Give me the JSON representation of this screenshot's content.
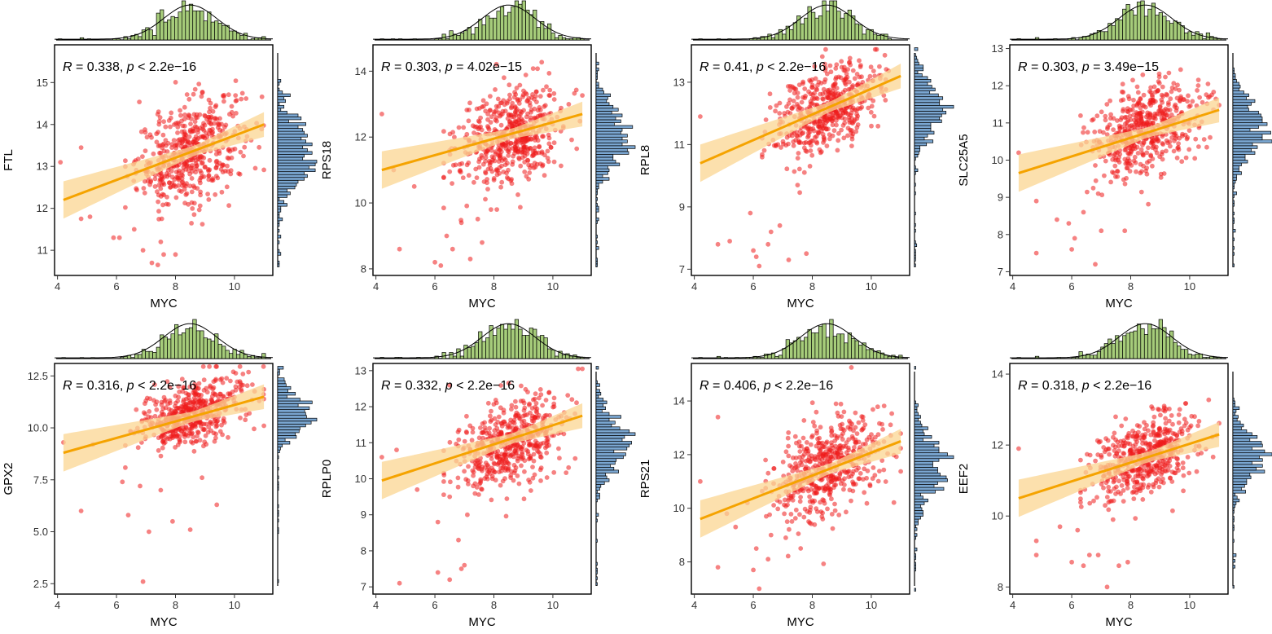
{
  "colors": {
    "points": "#ee1c1c",
    "fit_line": "#f5a300",
    "ci_band": "#fbd592",
    "top_hist": "#a6cc7a",
    "right_hist": "#7aa6d1",
    "frame": "#000000"
  },
  "chart_data": [
    {
      "type": "scatter",
      "title": "",
      "xlabel": "MYC",
      "ylabel": "FTL",
      "xlim": [
        3.9,
        11.3
      ],
      "ylim": [
        10.4,
        15.9
      ],
      "xticks": [
        "4",
        "6",
        "8",
        "10"
      ],
      "yticks": [
        "11",
        "12",
        "13",
        "14",
        "15"
      ],
      "ytick_values": [
        11,
        12,
        13,
        14,
        15
      ],
      "r_label": "R",
      "p_label": "p",
      "stat_text": " = 0.338, ",
      "p_text": " < 2.2e−16",
      "fit": {
        "x0": 4.2,
        "y0": 12.2,
        "x1": 11.0,
        "y1": 14.0
      },
      "cloud": {
        "mean_x": 8.5,
        "sd_x": 0.9,
        "mean_y": 13.35,
        "sd_y": 0.6,
        "slope": 0.26
      },
      "outliers": [
        [
          6.1,
          11.3
        ],
        [
          6.6,
          11.5
        ],
        [
          7.2,
          10.7
        ],
        [
          7.6,
          10.9
        ],
        [
          5.9,
          11.3
        ],
        [
          4.8,
          13.45
        ],
        [
          4.1,
          13.1
        ],
        [
          5.1,
          11.8
        ],
        [
          7.5,
          11.2
        ],
        [
          4.8,
          11.75
        ],
        [
          6.9,
          11.0
        ],
        [
          7.4,
          10.65
        ],
        [
          8.0,
          10.9
        ]
      ]
    },
    {
      "type": "scatter",
      "title": "",
      "xlabel": "MYC",
      "ylabel": "RPS18",
      "xlim": [
        3.9,
        11.3
      ],
      "ylim": [
        7.8,
        14.8
      ],
      "xticks": [
        "4",
        "6",
        "8",
        "10"
      ],
      "yticks": [
        "8",
        "10",
        "12",
        "14"
      ],
      "ytick_values": [
        8,
        10,
        12,
        14
      ],
      "r_label": "R",
      "p_label": "p",
      "stat_text": " = 0.303, ",
      "p_text": " = 4.02e−15",
      "fit": {
        "x0": 4.2,
        "y0": 11.0,
        "x1": 11.0,
        "y1": 12.7
      },
      "cloud": {
        "mean_x": 8.5,
        "sd_x": 0.9,
        "mean_y": 12.05,
        "sd_y": 0.72,
        "slope": 0.25
      },
      "outliers": [
        [
          4.8,
          8.6
        ],
        [
          6.0,
          8.2
        ],
        [
          6.6,
          8.6
        ],
        [
          7.2,
          8.3
        ],
        [
          6.4,
          9.0
        ],
        [
          6.9,
          9.4
        ],
        [
          7.6,
          8.8
        ],
        [
          5.3,
          10.5
        ],
        [
          4.2,
          12.7
        ],
        [
          4.6,
          11.0
        ],
        [
          7.9,
          9.8
        ],
        [
          6.2,
          8.1
        ],
        [
          8.1,
          9.8
        ]
      ]
    },
    {
      "type": "scatter",
      "title": "",
      "xlabel": "MYC",
      "ylabel": "RPL8",
      "xlim": [
        3.9,
        11.3
      ],
      "ylim": [
        6.8,
        14.2
      ],
      "xticks": [
        "4",
        "6",
        "8",
        "10"
      ],
      "yticks": [
        "7",
        "9",
        "11",
        "13"
      ],
      "ytick_values": [
        7,
        9,
        11,
        13
      ],
      "r_label": "R",
      "p_label": "p",
      "stat_text": " = 0.41, ",
      "p_text": " < 2.2e−16",
      "fit": {
        "x0": 4.2,
        "y0": 10.4,
        "x1": 11.0,
        "y1": 13.2
      },
      "cloud": {
        "mean_x": 8.5,
        "sd_x": 0.9,
        "mean_y": 12.1,
        "sd_y": 0.68,
        "slope": 0.42
      },
      "outliers": [
        [
          4.8,
          7.8
        ],
        [
          6.1,
          7.4
        ],
        [
          6.6,
          8.2
        ],
        [
          7.2,
          7.3
        ],
        [
          5.9,
          8.8
        ],
        [
          6.5,
          7.8
        ],
        [
          7.5,
          9.7
        ],
        [
          4.2,
          11.9
        ],
        [
          6.2,
          7.1
        ],
        [
          6.9,
          8.4
        ],
        [
          6.0,
          7.6
        ],
        [
          7.8,
          7.5
        ],
        [
          5.2,
          7.9
        ]
      ]
    },
    {
      "type": "scatter",
      "title": "",
      "xlabel": "MYC",
      "ylabel": "SLC25A5",
      "xlim": [
        3.9,
        11.3
      ],
      "ylim": [
        6.9,
        13.1
      ],
      "xticks": [
        "4",
        "6",
        "8",
        "10"
      ],
      "yticks": [
        "7",
        "8",
        "9",
        "10",
        "11",
        "12",
        "13"
      ],
      "ytick_values": [
        7,
        8,
        9,
        10,
        11,
        12,
        13
      ],
      "r_label": "R",
      "p_label": "p",
      "stat_text": " = 0.303, ",
      "p_text": " = 3.49e−15",
      "fit": {
        "x0": 4.2,
        "y0": 9.65,
        "x1": 11.0,
        "y1": 11.35
      },
      "cloud": {
        "mean_x": 8.5,
        "sd_x": 0.9,
        "mean_y": 10.8,
        "sd_y": 0.6,
        "slope": 0.25
      },
      "outliers": [
        [
          4.8,
          7.5
        ],
        [
          6.0,
          7.6
        ],
        [
          6.8,
          7.2
        ],
        [
          4.2,
          10.2
        ],
        [
          4.8,
          8.9
        ],
        [
          5.9,
          8.3
        ],
        [
          6.4,
          8.6
        ],
        [
          7.0,
          8.1
        ],
        [
          7.8,
          8.1
        ],
        [
          6.9,
          9.1
        ],
        [
          5.5,
          8.4
        ],
        [
          6.1,
          7.9
        ]
      ]
    },
    {
      "type": "scatter",
      "title": "",
      "xlabel": "MYC",
      "ylabel": "GPX2",
      "xlim": [
        3.9,
        11.3
      ],
      "ylim": [
        2.0,
        13.1
      ],
      "xticks": [
        "4",
        "6",
        "8",
        "10"
      ],
      "yticks": [
        "2.5",
        "5.0",
        "7.5",
        "10.0",
        "12.5"
      ],
      "ytick_values": [
        2.5,
        5.0,
        7.5,
        10.0,
        12.5
      ],
      "r_label": "R",
      "p_label": "p",
      "stat_text": " = 0.316, ",
      "p_text": " < 2.2e−16",
      "fit": {
        "x0": 4.2,
        "y0": 8.8,
        "x1": 11.0,
        "y1": 11.5
      },
      "cloud": {
        "mean_x": 8.5,
        "sd_x": 0.9,
        "mean_y": 10.7,
        "sd_y": 0.75,
        "slope": 0.4
      },
      "outliers": [
        [
          4.8,
          6.0
        ],
        [
          6.9,
          2.6
        ],
        [
          7.1,
          5.0
        ],
        [
          8.5,
          5.1
        ],
        [
          6.4,
          5.8
        ],
        [
          7.9,
          5.5
        ],
        [
          5.2,
          9.2
        ],
        [
          4.2,
          9.3
        ],
        [
          6.2,
          7.4
        ],
        [
          6.8,
          7.2
        ],
        [
          9.4,
          6.3
        ],
        [
          7.5,
          7.0
        ],
        [
          8.9,
          7.6
        ]
      ]
    },
    {
      "type": "scatter",
      "title": "",
      "xlabel": "MYC",
      "ylabel": "RPLP0",
      "xlim": [
        3.9,
        11.3
      ],
      "ylim": [
        6.8,
        13.2
      ],
      "xticks": [
        "4",
        "6",
        "8",
        "10"
      ],
      "yticks": [
        "7",
        "8",
        "9",
        "10",
        "11",
        "12",
        "13"
      ],
      "ytick_values": [
        7,
        8,
        9,
        10,
        11,
        12,
        13
      ],
      "r_label": "R",
      "p_label": "p",
      "stat_text": " = 0.332, ",
      "p_text": " < 2.2e−16",
      "fit": {
        "x0": 4.2,
        "y0": 9.95,
        "x1": 11.0,
        "y1": 11.75
      },
      "cloud": {
        "mean_x": 8.5,
        "sd_x": 0.9,
        "mean_y": 11.05,
        "sd_y": 0.58,
        "slope": 0.27
      },
      "outliers": [
        [
          4.8,
          7.1
        ],
        [
          6.1,
          7.4
        ],
        [
          6.5,
          7.2
        ],
        [
          7.0,
          7.6
        ],
        [
          6.8,
          8.3
        ],
        [
          7.1,
          9.0
        ],
        [
          6.5,
          9.5
        ],
        [
          6.1,
          8.8
        ],
        [
          7.3,
          9.8
        ],
        [
          4.2,
          10.6
        ],
        [
          4.7,
          10.8
        ],
        [
          5.4,
          9.7
        ],
        [
          6.9,
          7.5
        ]
      ]
    },
    {
      "type": "scatter",
      "title": "",
      "xlabel": "MYC",
      "ylabel": "RPS21",
      "xlim": [
        3.9,
        11.3
      ],
      "ylim": [
        6.8,
        15.4
      ],
      "xticks": [
        "4",
        "6",
        "8",
        "10"
      ],
      "yticks": [
        "8",
        "10",
        "12",
        "14"
      ],
      "ytick_values": [
        8,
        10,
        12,
        14
      ],
      "r_label": "R",
      "p_label": "p",
      "stat_text": " = 0.406, ",
      "p_text": " < 2.2e−16",
      "fit": {
        "x0": 4.2,
        "y0": 9.6,
        "x1": 11.0,
        "y1": 12.5
      },
      "cloud": {
        "mean_x": 8.5,
        "sd_x": 0.9,
        "mean_y": 11.55,
        "sd_y": 0.85,
        "slope": 0.45
      },
      "outliers": [
        [
          4.8,
          7.8
        ],
        [
          6.2,
          7.0
        ],
        [
          6.0,
          7.7
        ],
        [
          4.2,
          11.0
        ],
        [
          4.8,
          13.4
        ],
        [
          5.4,
          9.3
        ],
        [
          6.1,
          8.5
        ],
        [
          6.6,
          9.0
        ],
        [
          7.1,
          8.9
        ],
        [
          5.8,
          10.2
        ],
        [
          6.5,
          8.1
        ],
        [
          5.1,
          9.8
        ]
      ]
    },
    {
      "type": "scatter",
      "title": "",
      "xlabel": "MYC",
      "ylabel": "EEF2",
      "xlim": [
        3.9,
        11.3
      ],
      "ylim": [
        7.8,
        14.3
      ],
      "xticks": [
        "4",
        "6",
        "8",
        "10"
      ],
      "yticks": [
        "8",
        "10",
        "12",
        "14"
      ],
      "ytick_values": [
        8,
        10,
        12,
        14
      ],
      "r_label": "R",
      "p_label": "p",
      "stat_text": " = 0.318, ",
      "p_text": " < 2.2e−16",
      "fit": {
        "x0": 4.2,
        "y0": 10.5,
        "x1": 11.0,
        "y1": 12.3
      },
      "cloud": {
        "mean_x": 8.5,
        "sd_x": 0.9,
        "mean_y": 11.7,
        "sd_y": 0.55,
        "slope": 0.26
      },
      "outliers": [
        [
          4.8,
          9.3
        ],
        [
          4.8,
          8.9
        ],
        [
          6.0,
          8.7
        ],
        [
          6.6,
          8.9
        ],
        [
          7.2,
          8.0
        ],
        [
          7.6,
          8.6
        ],
        [
          7.9,
          8.7
        ],
        [
          6.4,
          8.6
        ],
        [
          6.9,
          8.9
        ],
        [
          4.2,
          11.9
        ],
        [
          5.6,
          9.7
        ],
        [
          6.2,
          9.6
        ],
        [
          7.4,
          9.9
        ]
      ]
    }
  ]
}
